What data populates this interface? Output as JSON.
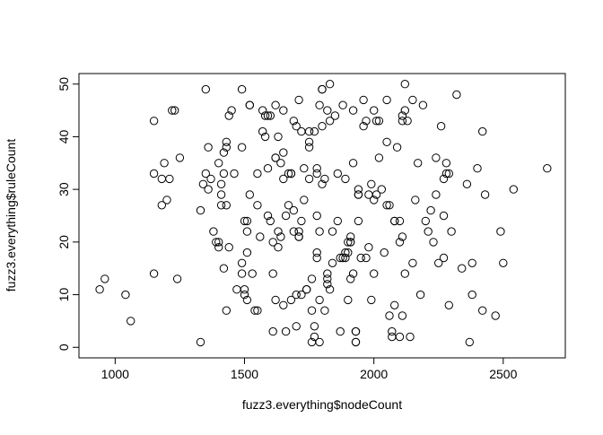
{
  "chart_data": {
    "type": "scatter",
    "title": "",
    "xlabel": "fuzz3.everything$nodeCount",
    "ylabel": "fuzz3.everything$ruleCount",
    "xlim": [
      860,
      2740
    ],
    "ylim": [
      -2,
      52
    ],
    "x_ticks": [
      1000,
      1500,
      2000,
      2500
    ],
    "y_ticks": [
      0,
      10,
      20,
      30,
      40,
      50
    ],
    "grid": false,
    "marker": "open-circle",
    "points": [
      [
        940,
        11
      ],
      [
        960,
        13
      ],
      [
        1040,
        10
      ],
      [
        1060,
        5
      ],
      [
        1150,
        14
      ],
      [
        1150,
        33
      ],
      [
        1150,
        43
      ],
      [
        1180,
        27
      ],
      [
        1180,
        32
      ],
      [
        1190,
        35
      ],
      [
        1200,
        28
      ],
      [
        1210,
        32
      ],
      [
        1220,
        45
      ],
      [
        1230,
        45
      ],
      [
        1240,
        13
      ],
      [
        1250,
        36
      ],
      [
        1330,
        26
      ],
      [
        1330,
        1
      ],
      [
        1340,
        31
      ],
      [
        1350,
        49
      ],
      [
        1350,
        33
      ],
      [
        1360,
        38
      ],
      [
        1360,
        30
      ],
      [
        1370,
        32
      ],
      [
        1380,
        22
      ],
      [
        1390,
        20
      ],
      [
        1400,
        20
      ],
      [
        1400,
        19
      ],
      [
        1400,
        35
      ],
      [
        1410,
        27
      ],
      [
        1410,
        31
      ],
      [
        1410,
        29
      ],
      [
        1420,
        33
      ],
      [
        1420,
        37
      ],
      [
        1420,
        15
      ],
      [
        1430,
        38
      ],
      [
        1430,
        27
      ],
      [
        1430,
        39
      ],
      [
        1430,
        7
      ],
      [
        1440,
        44
      ],
      [
        1440,
        19
      ],
      [
        1450,
        45
      ],
      [
        1460,
        33
      ],
      [
        1470,
        11
      ],
      [
        1490,
        49
      ],
      [
        1490,
        38
      ],
      [
        1490,
        16
      ],
      [
        1490,
        14
      ],
      [
        1500,
        24
      ],
      [
        1500,
        11
      ],
      [
        1500,
        10
      ],
      [
        1510,
        9
      ],
      [
        1510,
        22
      ],
      [
        1510,
        18
      ],
      [
        1510,
        24
      ],
      [
        1520,
        29
      ],
      [
        1520,
        46
      ],
      [
        1520,
        46
      ],
      [
        1530,
        14
      ],
      [
        1540,
        7
      ],
      [
        1550,
        7
      ],
      [
        1550,
        33
      ],
      [
        1550,
        27
      ],
      [
        1560,
        21
      ],
      [
        1570,
        45
      ],
      [
        1570,
        41
      ],
      [
        1580,
        44
      ],
      [
        1580,
        40
      ],
      [
        1590,
        44
      ],
      [
        1590,
        34
      ],
      [
        1590,
        25
      ],
      [
        1600,
        24
      ],
      [
        1600,
        44
      ],
      [
        1610,
        14
      ],
      [
        1610,
        20
      ],
      [
        1610,
        3
      ],
      [
        1620,
        9
      ],
      [
        1620,
        36
      ],
      [
        1620,
        36
      ],
      [
        1620,
        46
      ],
      [
        1630,
        22
      ],
      [
        1630,
        19
      ],
      [
        1630,
        40
      ],
      [
        1640,
        35
      ],
      [
        1640,
        21
      ],
      [
        1650,
        45
      ],
      [
        1650,
        8
      ],
      [
        1650,
        32
      ],
      [
        1650,
        37
      ],
      [
        1660,
        25
      ],
      [
        1660,
        3
      ],
      [
        1670,
        27
      ],
      [
        1670,
        33
      ],
      [
        1680,
        33
      ],
      [
        1680,
        33
      ],
      [
        1680,
        9
      ],
      [
        1690,
        22
      ],
      [
        1690,
        26
      ],
      [
        1690,
        43
      ],
      [
        1700,
        42
      ],
      [
        1700,
        4
      ],
      [
        1700,
        10
      ],
      [
        1710,
        21
      ],
      [
        1710,
        21
      ],
      [
        1710,
        22
      ],
      [
        1710,
        47
      ],
      [
        1720,
        24
      ],
      [
        1720,
        41
      ],
      [
        1720,
        10
      ],
      [
        1730,
        28
      ],
      [
        1730,
        34
      ],
      [
        1740,
        11
      ],
      [
        1740,
        11
      ],
      [
        1750,
        38
      ],
      [
        1750,
        41
      ],
      [
        1750,
        39
      ],
      [
        1750,
        32
      ],
      [
        1760,
        7
      ],
      [
        1760,
        1
      ],
      [
        1760,
        13
      ],
      [
        1770,
        2
      ],
      [
        1770,
        41
      ],
      [
        1770,
        4
      ],
      [
        1780,
        18
      ],
      [
        1780,
        17
      ],
      [
        1780,
        25
      ],
      [
        1780,
        33
      ],
      [
        1780,
        34
      ],
      [
        1790,
        46
      ],
      [
        1790,
        22
      ],
      [
        1790,
        9
      ],
      [
        1790,
        1
      ],
      [
        1800,
        49
      ],
      [
        1800,
        49
      ],
      [
        1800,
        31
      ],
      [
        1800,
        42
      ],
      [
        1810,
        32
      ],
      [
        1810,
        7
      ],
      [
        1820,
        45
      ],
      [
        1820,
        13
      ],
      [
        1820,
        14
      ],
      [
        1820,
        12
      ],
      [
        1830,
        50
      ],
      [
        1830,
        43
      ],
      [
        1830,
        11
      ],
      [
        1840,
        16
      ],
      [
        1840,
        22
      ],
      [
        1850,
        44
      ],
      [
        1860,
        33
      ],
      [
        1860,
        24
      ],
      [
        1870,
        3
      ],
      [
        1870,
        17
      ],
      [
        1880,
        17
      ],
      [
        1880,
        46
      ],
      [
        1890,
        32
      ],
      [
        1890,
        18
      ],
      [
        1890,
        17
      ],
      [
        1900,
        18
      ],
      [
        1900,
        20
      ],
      [
        1900,
        9
      ],
      [
        1910,
        20
      ],
      [
        1910,
        20
      ],
      [
        1910,
        21
      ],
      [
        1910,
        13
      ],
      [
        1920,
        35
      ],
      [
        1920,
        14
      ],
      [
        1920,
        45
      ],
      [
        1930,
        1
      ],
      [
        1930,
        3
      ],
      [
        1930,
        3
      ],
      [
        1930,
        1
      ],
      [
        1940,
        24
      ],
      [
        1940,
        29
      ],
      [
        1940,
        29
      ],
      [
        1940,
        30
      ],
      [
        1950,
        17
      ],
      [
        1960,
        42
      ],
      [
        1960,
        47
      ],
      [
        1970,
        17
      ],
      [
        1970,
        43
      ],
      [
        1980,
        19
      ],
      [
        1980,
        29
      ],
      [
        1990,
        9
      ],
      [
        1990,
        31
      ],
      [
        2000,
        14
      ],
      [
        2000,
        28
      ],
      [
        2000,
        45
      ],
      [
        2010,
        29
      ],
      [
        2010,
        43
      ],
      [
        2020,
        43
      ],
      [
        2020,
        36
      ],
      [
        2030,
        30
      ],
      [
        2040,
        18
      ],
      [
        2050,
        47
      ],
      [
        2050,
        27
      ],
      [
        2050,
        39
      ],
      [
        2060,
        27
      ],
      [
        2060,
        6
      ],
      [
        2070,
        3
      ],
      [
        2070,
        2
      ],
      [
        2080,
        24
      ],
      [
        2080,
        8
      ],
      [
        2080,
        24
      ],
      [
        2090,
        38
      ],
      [
        2100,
        24
      ],
      [
        2100,
        2
      ],
      [
        2100,
        20
      ],
      [
        2110,
        44
      ],
      [
        2110,
        6
      ],
      [
        2110,
        21
      ],
      [
        2110,
        43
      ],
      [
        2120,
        50
      ],
      [
        2120,
        14
      ],
      [
        2120,
        45
      ],
      [
        2130,
        43
      ],
      [
        2140,
        2
      ],
      [
        2150,
        47
      ],
      [
        2150,
        16
      ],
      [
        2160,
        28
      ],
      [
        2170,
        35
      ],
      [
        2180,
        10
      ],
      [
        2190,
        46
      ],
      [
        2200,
        24
      ],
      [
        2210,
        22
      ],
      [
        2220,
        26
      ],
      [
        2230,
        20
      ],
      [
        2240,
        36
      ],
      [
        2240,
        29
      ],
      [
        2250,
        16
      ],
      [
        2260,
        42
      ],
      [
        2270,
        25
      ],
      [
        2270,
        17
      ],
      [
        2270,
        32
      ],
      [
        2280,
        35
      ],
      [
        2280,
        33
      ],
      [
        2290,
        33
      ],
      [
        2290,
        8
      ],
      [
        2300,
        22
      ],
      [
        2320,
        48
      ],
      [
        2340,
        15
      ],
      [
        2360,
        31
      ],
      [
        2370,
        1
      ],
      [
        2380,
        16
      ],
      [
        2380,
        10
      ],
      [
        2400,
        34
      ],
      [
        2420,
        7
      ],
      [
        2420,
        41
      ],
      [
        2430,
        29
      ],
      [
        2470,
        6
      ],
      [
        2490,
        22
      ],
      [
        2500,
        16
      ],
      [
        2540,
        30
      ],
      [
        2670,
        34
      ]
    ]
  }
}
